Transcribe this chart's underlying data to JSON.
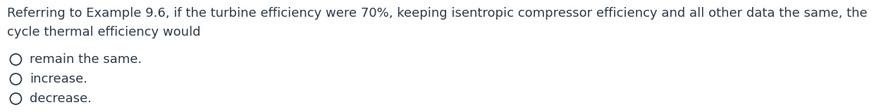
{
  "background_color": "#ffffff",
  "question_text_line1": "Referring to Example 9.6, if the turbine efficiency were 70%, keeping isentropic compressor efficiency and all other data the same, the",
  "question_text_line2": "cycle thermal efficiency would",
  "options": [
    "remain the same.",
    "increase.",
    "decrease."
  ],
  "text_color": "#2d3a4a",
  "font_size_question": 13.0,
  "font_size_options": 13.0,
  "circle_linewidth": 1.3
}
